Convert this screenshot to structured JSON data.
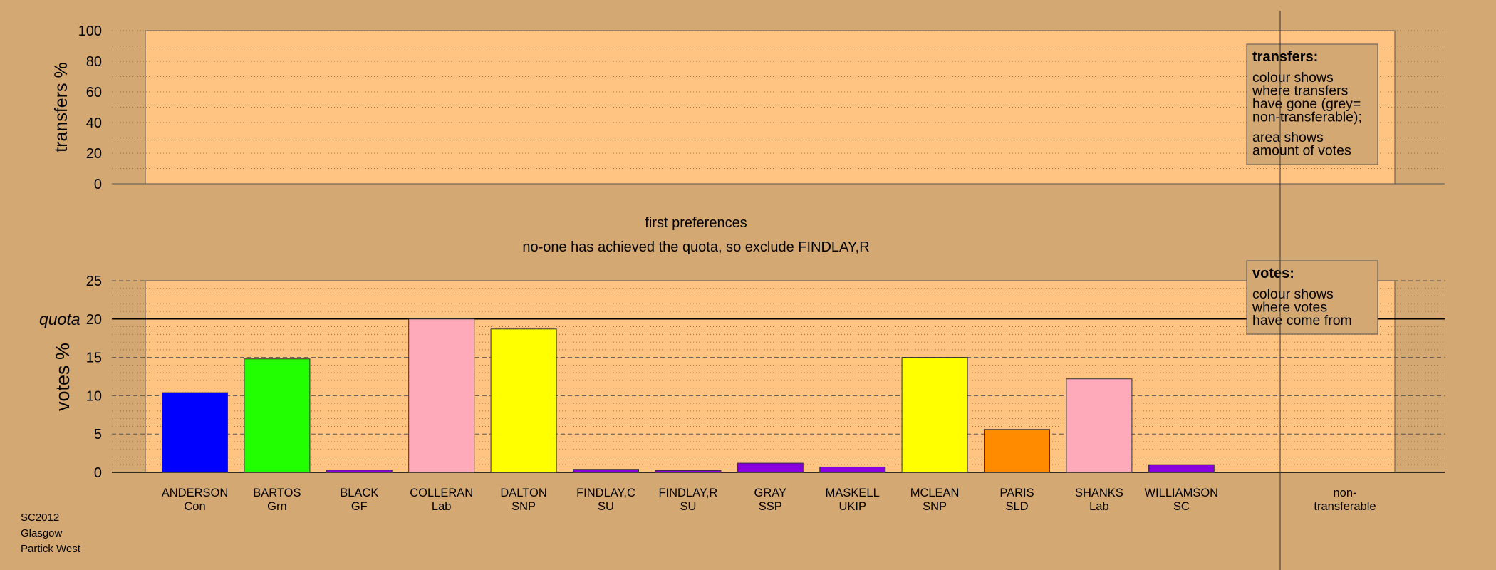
{
  "chart_data": [
    {
      "type": "bar",
      "role": "transfers",
      "ylabel": "transfers %",
      "ylim": [
        0,
        100
      ],
      "yticks": [
        0,
        20,
        40,
        60,
        80,
        100
      ],
      "values": [],
      "legend": {
        "title": "transfers:",
        "lines": [
          "colour shows",
          "where transfers",
          "have gone (grey=",
          "non-transferable);"
        ],
        "lines2": [
          "area shows",
          "amount of votes"
        ]
      }
    },
    {
      "type": "bar",
      "role": "votes",
      "title": "first preferences",
      "subtitle": "no-one has achieved the quota, so exclude FINDLAY,R",
      "ylabel": "votes %",
      "ylim": [
        0,
        25
      ],
      "yticks": [
        0,
        5,
        10,
        15,
        20,
        25
      ],
      "quota": 20,
      "quota_label": "quota",
      "categories": [
        {
          "name": "ANDERSON",
          "party": "Con",
          "value": 10.4,
          "color": "#0000ff"
        },
        {
          "name": "BARTOS",
          "party": "Grn",
          "value": 14.8,
          "color": "#22ff00"
        },
        {
          "name": "BLACK",
          "party": "GF",
          "value": 0.3,
          "color": "#8800dd"
        },
        {
          "name": "COLLERAN",
          "party": "Lab",
          "value": 20.0,
          "color": "#ffaabb"
        },
        {
          "name": "DALTON",
          "party": "SNP",
          "value": 18.7,
          "color": "#ffff00"
        },
        {
          "name": "FINDLAY,C",
          "party": "SU",
          "value": 0.4,
          "color": "#8800dd"
        },
        {
          "name": "FINDLAY,R",
          "party": "SU",
          "value": 0.25,
          "color": "#8800dd"
        },
        {
          "name": "GRAY",
          "party": "SSP",
          "value": 1.2,
          "color": "#8800dd"
        },
        {
          "name": "MASKELL",
          "party": "UKIP",
          "value": 0.7,
          "color": "#8800dd"
        },
        {
          "name": "MCLEAN",
          "party": "SNP",
          "value": 15.0,
          "color": "#ffff00"
        },
        {
          "name": "PARIS",
          "party": "SLD",
          "value": 5.6,
          "color": "#ff8c00"
        },
        {
          "name": "SHANKS",
          "party": "Lab",
          "value": 12.2,
          "color": "#ffaabb"
        },
        {
          "name": "WILLIAMSON",
          "party": "SC",
          "value": 1.0,
          "color": "#8800dd"
        }
      ],
      "nontransferable": {
        "line1": "non-",
        "line2": "transferable",
        "value": 0
      },
      "legend": {
        "title": "votes:",
        "lines": [
          "colour shows",
          "where votes",
          "have come from"
        ]
      }
    }
  ],
  "colors": {
    "background": "#d4a872",
    "panel": "#ffc482",
    "legend_box": "#d4a872"
  },
  "footer": {
    "line1": "SC2012",
    "line2": "Glasgow",
    "line3": "Partick West"
  }
}
